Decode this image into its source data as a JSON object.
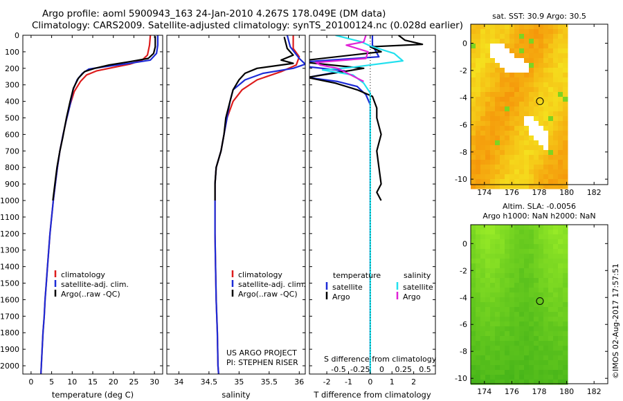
{
  "header": {
    "line1": "Argo profile: aoml 5900943_163 24-Jan-2010 4.267S 178.049E (DM data)",
    "line2": "Climatology: CARS2009. Satellite-adjusted climatology: synTS_20100124.nc (0.028d earlier)"
  },
  "stamp": "©IMOS 02-Aug-2017 17:57:51",
  "colors": {
    "climatology": "#dd1c1c",
    "satellite": "#1c2bd6",
    "argo": "#000000",
    "sal_satellite": "#22e0ee",
    "sal_argo": "#e022d6",
    "sst_bg": "#f2d21c",
    "sla_bg": "#44cc22"
  },
  "depth_axis": {
    "ylim": [
      0,
      2050
    ],
    "ticks": [
      0,
      100,
      200,
      300,
      400,
      500,
      600,
      700,
      800,
      900,
      1000,
      1100,
      1200,
      1300,
      1400,
      1500,
      1600,
      1700,
      1800,
      1900,
      2000
    ]
  },
  "chart_data": [
    {
      "type": "line",
      "id": "temperature",
      "xlabel": "temperature (deg C)",
      "xlim": [
        -2,
        32
      ],
      "xticks": [
        0,
        5,
        10,
        15,
        20,
        25,
        30
      ],
      "legend": [
        "climatology",
        "satellite-adj. clim.",
        "Argo(..raw -QC)"
      ],
      "series": [
        {
          "name": "climatology",
          "color": "#dd1c1c",
          "points": [
            [
              29,
              0
            ],
            [
              28.8,
              60
            ],
            [
              28.3,
              120
            ],
            [
              27,
              150
            ],
            [
              24,
              175
            ],
            [
              20,
              195
            ],
            [
              16,
              215
            ],
            [
              13.5,
              240
            ],
            [
              12,
              280
            ],
            [
              10.5,
              340
            ],
            [
              9.5,
              420
            ],
            [
              8.5,
              520
            ],
            [
              7.8,
              600
            ],
            [
              7,
              700
            ],
            [
              6.4,
              800
            ],
            [
              5.9,
              900
            ],
            [
              5.4,
              1000
            ],
            [
              5,
              1100
            ],
            [
              4.6,
              1200
            ],
            [
              4.3,
              1300
            ],
            [
              4,
              1400
            ],
            [
              3.7,
              1500
            ],
            [
              3.4,
              1600
            ],
            [
              3.2,
              1700
            ],
            [
              2.9,
              1800
            ],
            [
              2.7,
              1900
            ],
            [
              2.5,
              2000
            ],
            [
              2.4,
              2050
            ]
          ]
        },
        {
          "name": "satellite-adj. clim.",
          "color": "#1c2bd6",
          "points": [
            [
              30.8,
              0
            ],
            [
              30.8,
              60
            ],
            [
              30.5,
              110
            ],
            [
              29,
              150
            ],
            [
              24,
              170
            ],
            [
              18,
              190
            ],
            [
              14,
              205
            ],
            [
              12.5,
              230
            ],
            [
              11.2,
              270
            ],
            [
              10.2,
              330
            ],
            [
              9.5,
              420
            ],
            [
              8.5,
              520
            ],
            [
              7.8,
              600
            ],
            [
              7,
              700
            ],
            [
              6.4,
              800
            ],
            [
              5.9,
              900
            ],
            [
              5.4,
              1000
            ],
            [
              5,
              1100
            ],
            [
              4.6,
              1200
            ],
            [
              4.3,
              1300
            ],
            [
              4,
              1400
            ],
            [
              3.7,
              1500
            ],
            [
              3.4,
              1600
            ],
            [
              3.2,
              1700
            ],
            [
              2.9,
              1800
            ],
            [
              2.7,
              1900
            ],
            [
              2.5,
              2000
            ],
            [
              2.4,
              2050
            ]
          ]
        },
        {
          "name": "Argo(..raw -QC)",
          "color": "#000000",
          "points": [
            [
              30.2,
              5
            ],
            [
              30.2,
              70
            ],
            [
              29.8,
              110
            ],
            [
              28.5,
              140
            ],
            [
              24,
              160
            ],
            [
              19,
              180
            ],
            [
              15.5,
              200
            ],
            [
              13,
              220
            ],
            [
              11.5,
              260
            ],
            [
              10.3,
              320
            ],
            [
              9.5,
              400
            ],
            [
              8.6,
              500
            ],
            [
              7.7,
              620
            ],
            [
              7,
              700
            ],
            [
              6.3,
              800
            ],
            [
              5.8,
              900
            ],
            [
              5.3,
              1000
            ]
          ]
        }
      ]
    },
    {
      "type": "line",
      "id": "salinity",
      "xlabel": "salinity",
      "xlim": [
        33.8,
        36.1
      ],
      "xticks": [
        34,
        34.5,
        35,
        35.5,
        36
      ],
      "xticklabels": [
        "34",
        "34.5",
        "35",
        "35.5",
        "36"
      ],
      "legend": [
        "climatology",
        "satellite-adj. clim.",
        "Argo(..raw -QC)"
      ],
      "annotation": [
        "US ARGO PROJECT",
        "PI: STEPHEN RISER"
      ],
      "series": [
        {
          "name": "climatology",
          "color": "#dd1c1c",
          "points": [
            [
              35.9,
              0
            ],
            [
              35.9,
              80
            ],
            [
              36,
              130
            ],
            [
              35.95,
              180
            ],
            [
              35.7,
              220
            ],
            [
              35.3,
              270
            ],
            [
              35.05,
              330
            ],
            [
              34.9,
              400
            ],
            [
              34.8,
              500
            ],
            [
              34.75,
              600
            ],
            [
              34.7,
              700
            ],
            [
              34.62,
              800
            ],
            [
              34.6,
              900
            ],
            [
              34.6,
              1000
            ],
            [
              34.6,
              1200
            ],
            [
              34.61,
              1400
            ],
            [
              34.62,
              1600
            ],
            [
              34.64,
              1800
            ],
            [
              34.65,
              2000
            ],
            [
              34.66,
              2050
            ]
          ]
        },
        {
          "name": "satellite-adj. clim.",
          "color": "#1c2bd6",
          "points": [
            [
              35.8,
              0
            ],
            [
              35.85,
              70
            ],
            [
              36,
              140
            ],
            [
              36.1,
              175
            ],
            [
              35.9,
              200
            ],
            [
              35.4,
              230
            ],
            [
              35.1,
              270
            ],
            [
              34.9,
              330
            ],
            [
              34.85,
              400
            ],
            [
              34.8,
              500
            ],
            [
              34.75,
              600
            ],
            [
              34.7,
              700
            ],
            [
              34.62,
              800
            ],
            [
              34.6,
              900
            ],
            [
              34.6,
              1000
            ],
            [
              34.6,
              1200
            ],
            [
              34.61,
              1400
            ],
            [
              34.62,
              1600
            ],
            [
              34.64,
              1800
            ],
            [
              34.65,
              2000
            ],
            [
              34.66,
              2050
            ]
          ]
        },
        {
          "name": "Argo(..raw -QC)",
          "color": "#000000",
          "points": [
            [
              35.75,
              10
            ],
            [
              35.8,
              80
            ],
            [
              35.9,
              120
            ],
            [
              35.7,
              150
            ],
            [
              35.9,
              170
            ],
            [
              35.3,
              200
            ],
            [
              35.1,
              230
            ],
            [
              35,
              270
            ],
            [
              34.9,
              330
            ],
            [
              34.85,
              400
            ],
            [
              34.78,
              500
            ],
            [
              34.75,
              600
            ],
            [
              34.7,
              700
            ],
            [
              34.62,
              800
            ],
            [
              34.6,
              900
            ],
            [
              34.6,
              1000
            ]
          ]
        }
      ]
    },
    {
      "type": "line",
      "id": "differences",
      "xlabel": "T difference from climatology",
      "xlim": [
        -2.8,
        3.0
      ],
      "xticks": [
        -2,
        -1,
        0,
        1,
        2
      ],
      "xticklabels": [
        "-2",
        "-1",
        "0",
        "1",
        "2"
      ],
      "top_xlabel": "S difference from climatology",
      "top_xticks": [
        -0.5,
        -0.25,
        0,
        0.25,
        0.5
      ],
      "top_xticklabels": [
        "-0.5",
        "-0.25",
        "0",
        "0.25",
        "0.5"
      ],
      "legend_headers": [
        "temperature",
        "salinity"
      ],
      "legend": [
        "satellite",
        "Argo",
        "satellite",
        "Argo"
      ],
      "series": [
        {
          "name": "T satellite",
          "color": "#1c2bd6",
          "points": [
            [
              0.1,
              0
            ],
            [
              0.1,
              60
            ],
            [
              0.4,
              130
            ],
            [
              -2.9,
              160
            ],
            [
              -2.9,
              190
            ],
            [
              -1.2,
              215
            ],
            [
              -2.9,
              255
            ],
            [
              -1.5,
              280
            ],
            [
              -0.6,
              310
            ],
            [
              -0.2,
              360
            ],
            [
              0,
              420
            ],
            [
              0,
              500
            ],
            [
              0,
              700
            ],
            [
              0,
              900
            ],
            [
              0,
              1000
            ],
            [
              0,
              1200
            ],
            [
              0,
              1400
            ],
            [
              0,
              1600
            ],
            [
              0,
              1800
            ],
            [
              0,
              2000
            ],
            [
              0,
              2050
            ]
          ]
        },
        {
          "name": "T Argo",
          "color": "#000000",
          "points": [
            [
              1.3,
              0
            ],
            [
              1.6,
              30
            ],
            [
              2.4,
              55
            ],
            [
              0,
              70
            ],
            [
              0.5,
              100
            ],
            [
              -2.9,
              150
            ],
            [
              -2.9,
              165
            ],
            [
              -0.3,
              200
            ],
            [
              -2.9,
              255
            ],
            [
              -1.6,
              290
            ],
            [
              -0.6,
              330
            ],
            [
              0.1,
              370
            ],
            [
              0.3,
              440
            ],
            [
              0.3,
              500
            ],
            [
              0.5,
              600
            ],
            [
              0.3,
              700
            ],
            [
              0.4,
              800
            ],
            [
              0.5,
              900
            ],
            [
              0.3,
              950
            ],
            [
              0.5,
              1000
            ]
          ]
        },
        {
          "name": "S satellite",
          "color": "#22e0ee",
          "points": [
            [
              -1.6,
              0
            ],
            [
              -0.4,
              40
            ],
            [
              0,
              65
            ],
            [
              1.1,
              110
            ],
            [
              1.5,
              155
            ],
            [
              -0.9,
              195
            ],
            [
              -2.2,
              210
            ],
            [
              -0.8,
              240
            ],
            [
              -0.3,
              290
            ],
            [
              0,
              350
            ],
            [
              0,
              450
            ],
            [
              0,
              600
            ],
            [
              0,
              800
            ],
            [
              0,
              1000
            ],
            [
              0,
              1200
            ],
            [
              0,
              1400
            ],
            [
              0,
              1600
            ],
            [
              0,
              1800
            ],
            [
              0,
              2000
            ],
            [
              0,
              2050
            ]
          ]
        },
        {
          "name": "S Argo",
          "color": "#e022d6",
          "points": [
            [
              -0.2,
              0
            ],
            [
              -0.3,
              40
            ],
            [
              -1.1,
              60
            ],
            [
              -0.1,
              100
            ],
            [
              -0.2,
              140
            ],
            [
              -2.5,
              165
            ],
            [
              -2.3,
              180
            ],
            [
              -1.5,
              200
            ],
            [
              -0.3,
              280
            ]
          ]
        },
        {
          "name": "zero",
          "color": "#000000",
          "dotted": true,
          "points": [
            [
              0,
              0
            ],
            [
              0,
              2050
            ]
          ]
        }
      ]
    },
    {
      "type": "heatmap",
      "id": "sst_map",
      "title": "sat. SST: 30.9  Argo: 30.5",
      "xlim": [
        173,
        183
      ],
      "ylim": [
        -10.4,
        1.4
      ],
      "xticks": [
        174,
        176,
        178,
        180,
        182
      ],
      "yticks": [
        0,
        -2,
        -4,
        -6,
        -8,
        -10
      ],
      "data_extent": {
        "lon": [
          173,
          180
        ],
        "lat": [
          -10.4,
          1.4
        ]
      },
      "profile": {
        "lon": 178.049,
        "lat": -4.267
      }
    },
    {
      "type": "heatmap",
      "id": "sla_map",
      "title": "Altim. SLA: -0.0056",
      "subtitle": "Argo h1000: NaN  h2000: NaN",
      "xlim": [
        173,
        183
      ],
      "ylim": [
        -10.4,
        1.4
      ],
      "xticks": [
        174,
        176,
        178,
        180,
        182
      ],
      "yticks": [
        0,
        -2,
        -4,
        -6,
        -8,
        -10
      ],
      "data_extent": {
        "lon": [
          173,
          180
        ],
        "lat": [
          -10.4,
          1.4
        ]
      },
      "profile": {
        "lon": 178.049,
        "lat": -4.267
      }
    }
  ]
}
